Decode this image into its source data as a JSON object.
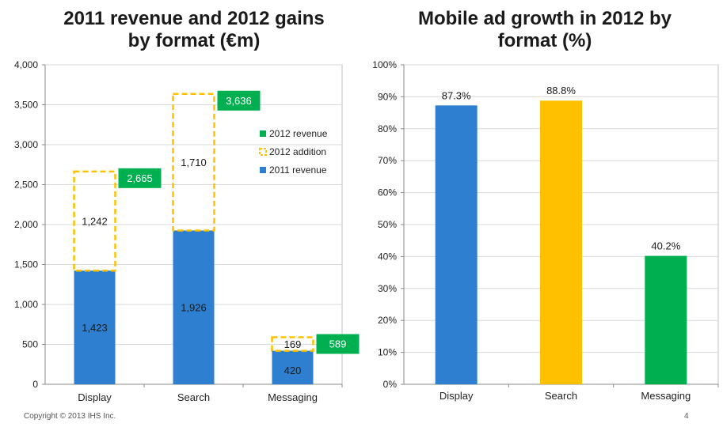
{
  "charts_text": {
    "left_title_line1": "2011 revenue and 2012 gains",
    "left_title_line2": "by format (€m)",
    "right_title_line1": "Mobile ad growth in 2012 by",
    "right_title_line2": "format (%)"
  },
  "footer": {
    "copyright": "Copyright © 2013 IHS Inc.",
    "page_number": "4"
  },
  "colors": {
    "blue": "#2e7fcf",
    "yellow": "#ffc000",
    "green": "#00b050"
  },
  "chart_data": [
    {
      "type": "bar",
      "stacked": true,
      "title": "2011 revenue and 2012 gains by format (€m)",
      "categories": [
        "Display",
        "Search",
        "Messaging"
      ],
      "series": [
        {
          "name": "2011 revenue",
          "values": [
            1423,
            1926,
            420
          ],
          "labels": [
            "1,423",
            "1,926",
            "420"
          ]
        },
        {
          "name": "2012 addition",
          "values": [
            1242,
            1710,
            169
          ],
          "labels": [
            "1,242",
            "1,710",
            "169"
          ]
        }
      ],
      "totals": {
        "name": "2012 revenue",
        "values": [
          2665,
          3636,
          589
        ],
        "labels": [
          "2,665",
          "3,636",
          "589"
        ]
      },
      "legend": [
        "2012 revenue",
        "2012 addition",
        "2011 revenue"
      ],
      "legend_position": "top-right",
      "ylim": [
        0,
        4000
      ],
      "yticks": [
        0,
        500,
        1000,
        1500,
        2000,
        2500,
        3000,
        3500,
        4000
      ],
      "ytick_labels": [
        "0",
        "500",
        "1,000",
        "1,500",
        "2,000",
        "2,500",
        "3,000",
        "3,500",
        "4,000"
      ],
      "grid": true
    },
    {
      "type": "bar",
      "title": "Mobile ad growth in 2012 by format (%)",
      "categories": [
        "Display",
        "Search",
        "Messaging"
      ],
      "values": [
        87.3,
        88.8,
        40.2
      ],
      "labels": [
        "87.3%",
        "88.8%",
        "40.2%"
      ],
      "bar_colors": [
        "#2e7fcf",
        "#ffc000",
        "#00b050"
      ],
      "ylim": [
        0,
        100
      ],
      "yticks": [
        0,
        10,
        20,
        30,
        40,
        50,
        60,
        70,
        80,
        90,
        100
      ],
      "ytick_labels": [
        "0%",
        "10%",
        "20%",
        "30%",
        "40%",
        "50%",
        "60%",
        "70%",
        "80%",
        "90%",
        "100%"
      ],
      "grid": true
    }
  ]
}
